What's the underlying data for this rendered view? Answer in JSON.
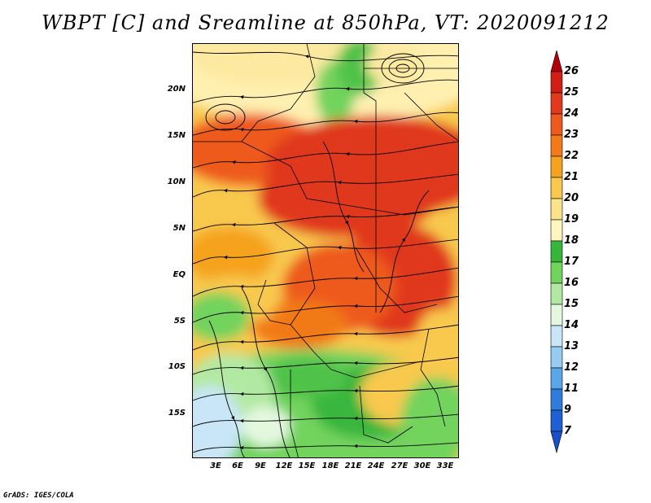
{
  "title": "WBPT [C] and Sreamline at 850hPa, VT: 2020091212",
  "footer": "GrADS: IGES/COLA",
  "map": {
    "variable": "Wet-bulb potential temperature",
    "units": "C",
    "level": "850hPa",
    "lat_labels": [
      "20N",
      "15N",
      "10N",
      "5N",
      "EQ",
      "5S",
      "10S",
      "15S"
    ],
    "lon_labels": [
      "3E",
      "6E",
      "9E",
      "12E",
      "15E",
      "18E",
      "21E",
      "24E",
      "27E",
      "30E",
      "33E"
    ]
  },
  "colorbar": {
    "levels": [
      "26",
      "25",
      "24",
      "23",
      "22",
      "21",
      "20",
      "19",
      "18",
      "17",
      "16",
      "15",
      "14",
      "13",
      "12",
      "11",
      "9",
      "7"
    ],
    "colors": [
      "#b4000a",
      "#d01e14",
      "#e0391c",
      "#ee5a1e",
      "#f27a18",
      "#f5a31f",
      "#f8c94e",
      "#fbe38c",
      "#fff5be",
      "#38b63c",
      "#72d35d",
      "#b2e9a2",
      "#e4f8e0",
      "#c9e6f8",
      "#96cbf2",
      "#5aa6e8",
      "#2e7ddc",
      "#1f5fd4",
      "#1a4fc8"
    ]
  }
}
